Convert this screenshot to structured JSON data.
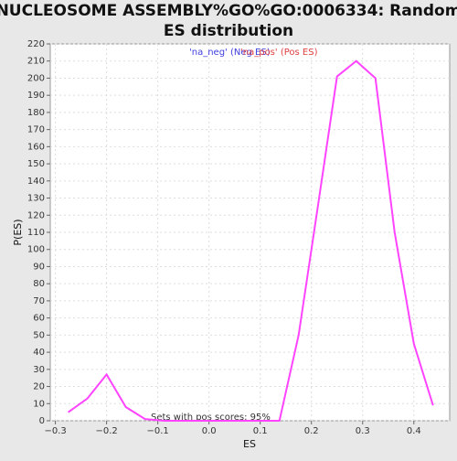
{
  "chart_data": {
    "type": "line",
    "title": "NUCLEOSOME ASSEMBLY%GO%GO:0006334: Random",
    "subtitle": "ES distribution",
    "xlabel": "ES",
    "ylabel": "P(ES)",
    "annotation": "Sets with pos scores: 95%",
    "legend": [
      {
        "name": "'na_neg' (Neg ES)",
        "color": "#4040e0"
      },
      {
        "name": "'na_pos' (Pos ES)",
        "color": "#e04040"
      }
    ],
    "series": [
      {
        "color": "#ff44ff",
        "x": [
          -0.275,
          -0.2375,
          -0.2,
          -0.1625,
          -0.125,
          -0.0875,
          -0.05,
          -0.0125,
          0.025,
          0.0625,
          0.1,
          0.1375,
          0.175,
          0.2125,
          0.25,
          0.2875,
          0.325,
          0.3625,
          0.4,
          0.4375
        ],
        "values": [
          5,
          13,
          27,
          8,
          1,
          0,
          0,
          0,
          0,
          0,
          0,
          0,
          50,
          125,
          201,
          210,
          200,
          110,
          45,
          9
        ]
      }
    ],
    "xlim": [
      -0.31,
      0.47
    ],
    "xticks": [
      {
        "value": -0.3,
        "label": "−0.3"
      },
      {
        "value": -0.2,
        "label": "−0.2"
      },
      {
        "value": -0.1,
        "label": "−0.1"
      },
      {
        "value": 0,
        "label": "0.0"
      },
      0.1,
      0.2,
      0.3,
      0.4
    ],
    "ylim": [
      0,
      220
    ],
    "yticks": [
      0,
      10,
      20,
      30,
      40,
      50,
      60,
      70,
      80,
      90,
      100,
      110,
      120,
      130,
      140,
      150,
      160,
      170,
      180,
      190,
      200,
      210,
      220
    ],
    "grid": true
  }
}
